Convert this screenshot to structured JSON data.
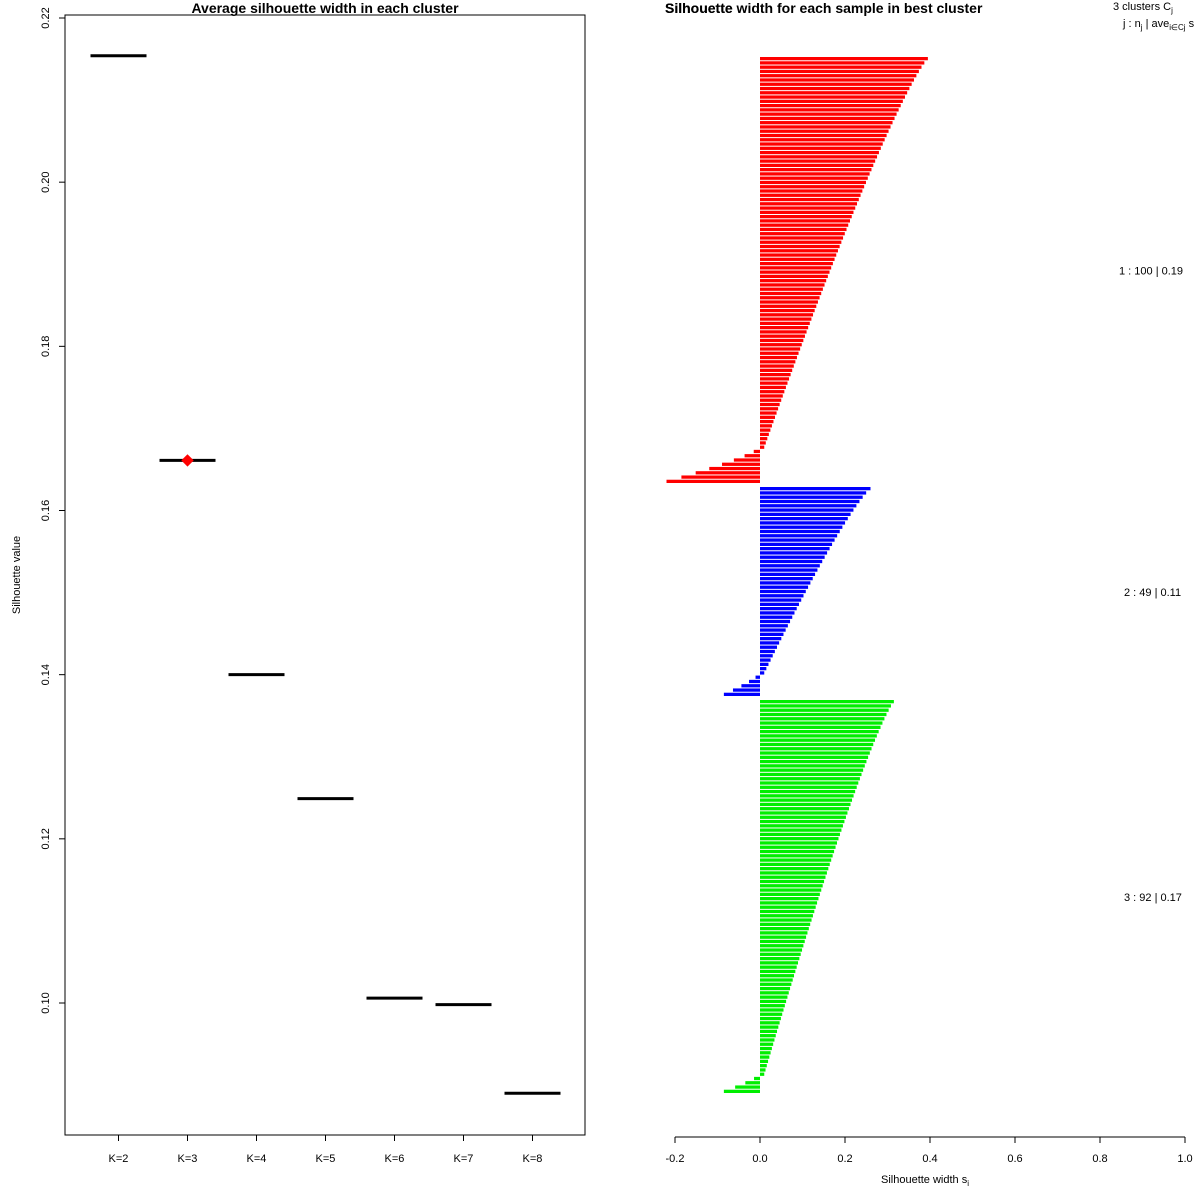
{
  "chart_data": [
    {
      "type": "line",
      "title": "Average silhouette width in each cluster",
      "xlabel": "",
      "ylabel": "Silhouette value",
      "ylim": [
        0.085,
        0.22
      ],
      "yticks": [
        "0.10",
        "0.12",
        "0.14",
        "0.16",
        "0.18",
        "0.20",
        "0.22"
      ],
      "ytick_values": [
        0.1,
        0.12,
        0.14,
        0.16,
        0.18,
        0.2,
        0.22
      ],
      "categories": [
        "K=2",
        "K=3",
        "K=4",
        "K=5",
        "K=6",
        "K=7",
        "K=8"
      ],
      "values": [
        0.2154,
        0.1661,
        0.14,
        0.1249,
        0.1006,
        0.0998,
        0.089
      ],
      "best_index": 1,
      "best_color": "#ff0000"
    },
    {
      "type": "bar",
      "orientation": "horizontal",
      "title": "Silhouette width for each sample in best cluster",
      "overlapped_title": "Silhouette",
      "xlabel": "Silhouette width s",
      "xlabel_sub": "i",
      "xlim": [
        -0.2,
        1.0
      ],
      "xticks": [
        "-0.2",
        "0.0",
        "0.2",
        "0.4",
        "0.6",
        "0.8",
        "1.0"
      ],
      "xtick_values": [
        -0.2,
        0.0,
        0.2,
        0.4,
        0.6,
        0.8,
        1.0
      ],
      "legend_header": {
        "line1": "3  clusters  C",
        "line1_sub": "j",
        "line2_a": "j :  n",
        "line2_sub1": "j",
        "line2_b": " | ave",
        "line2_sub2": "i∈Cj",
        "line2_c": "  s"
      },
      "clusters": [
        {
          "label": "1 :   100  |  0.19",
          "n": 100,
          "avg": 0.19,
          "color": "#ff0000",
          "max": 0.395,
          "min": 0.01,
          "neg_count": 8,
          "neg_min": -0.22
        },
        {
          "label": "2 :   49  |  0.11",
          "n": 49,
          "avg": 0.11,
          "color": "#0000ff",
          "max": 0.26,
          "min": 0.01,
          "neg_count": 5,
          "neg_min": -0.085
        },
        {
          "label": "3 :   92  |  0.17",
          "n": 92,
          "avg": 0.17,
          "color": "#00ee00",
          "max": 0.315,
          "min": 0.01,
          "neg_count": 4,
          "neg_min": -0.085
        }
      ]
    }
  ]
}
